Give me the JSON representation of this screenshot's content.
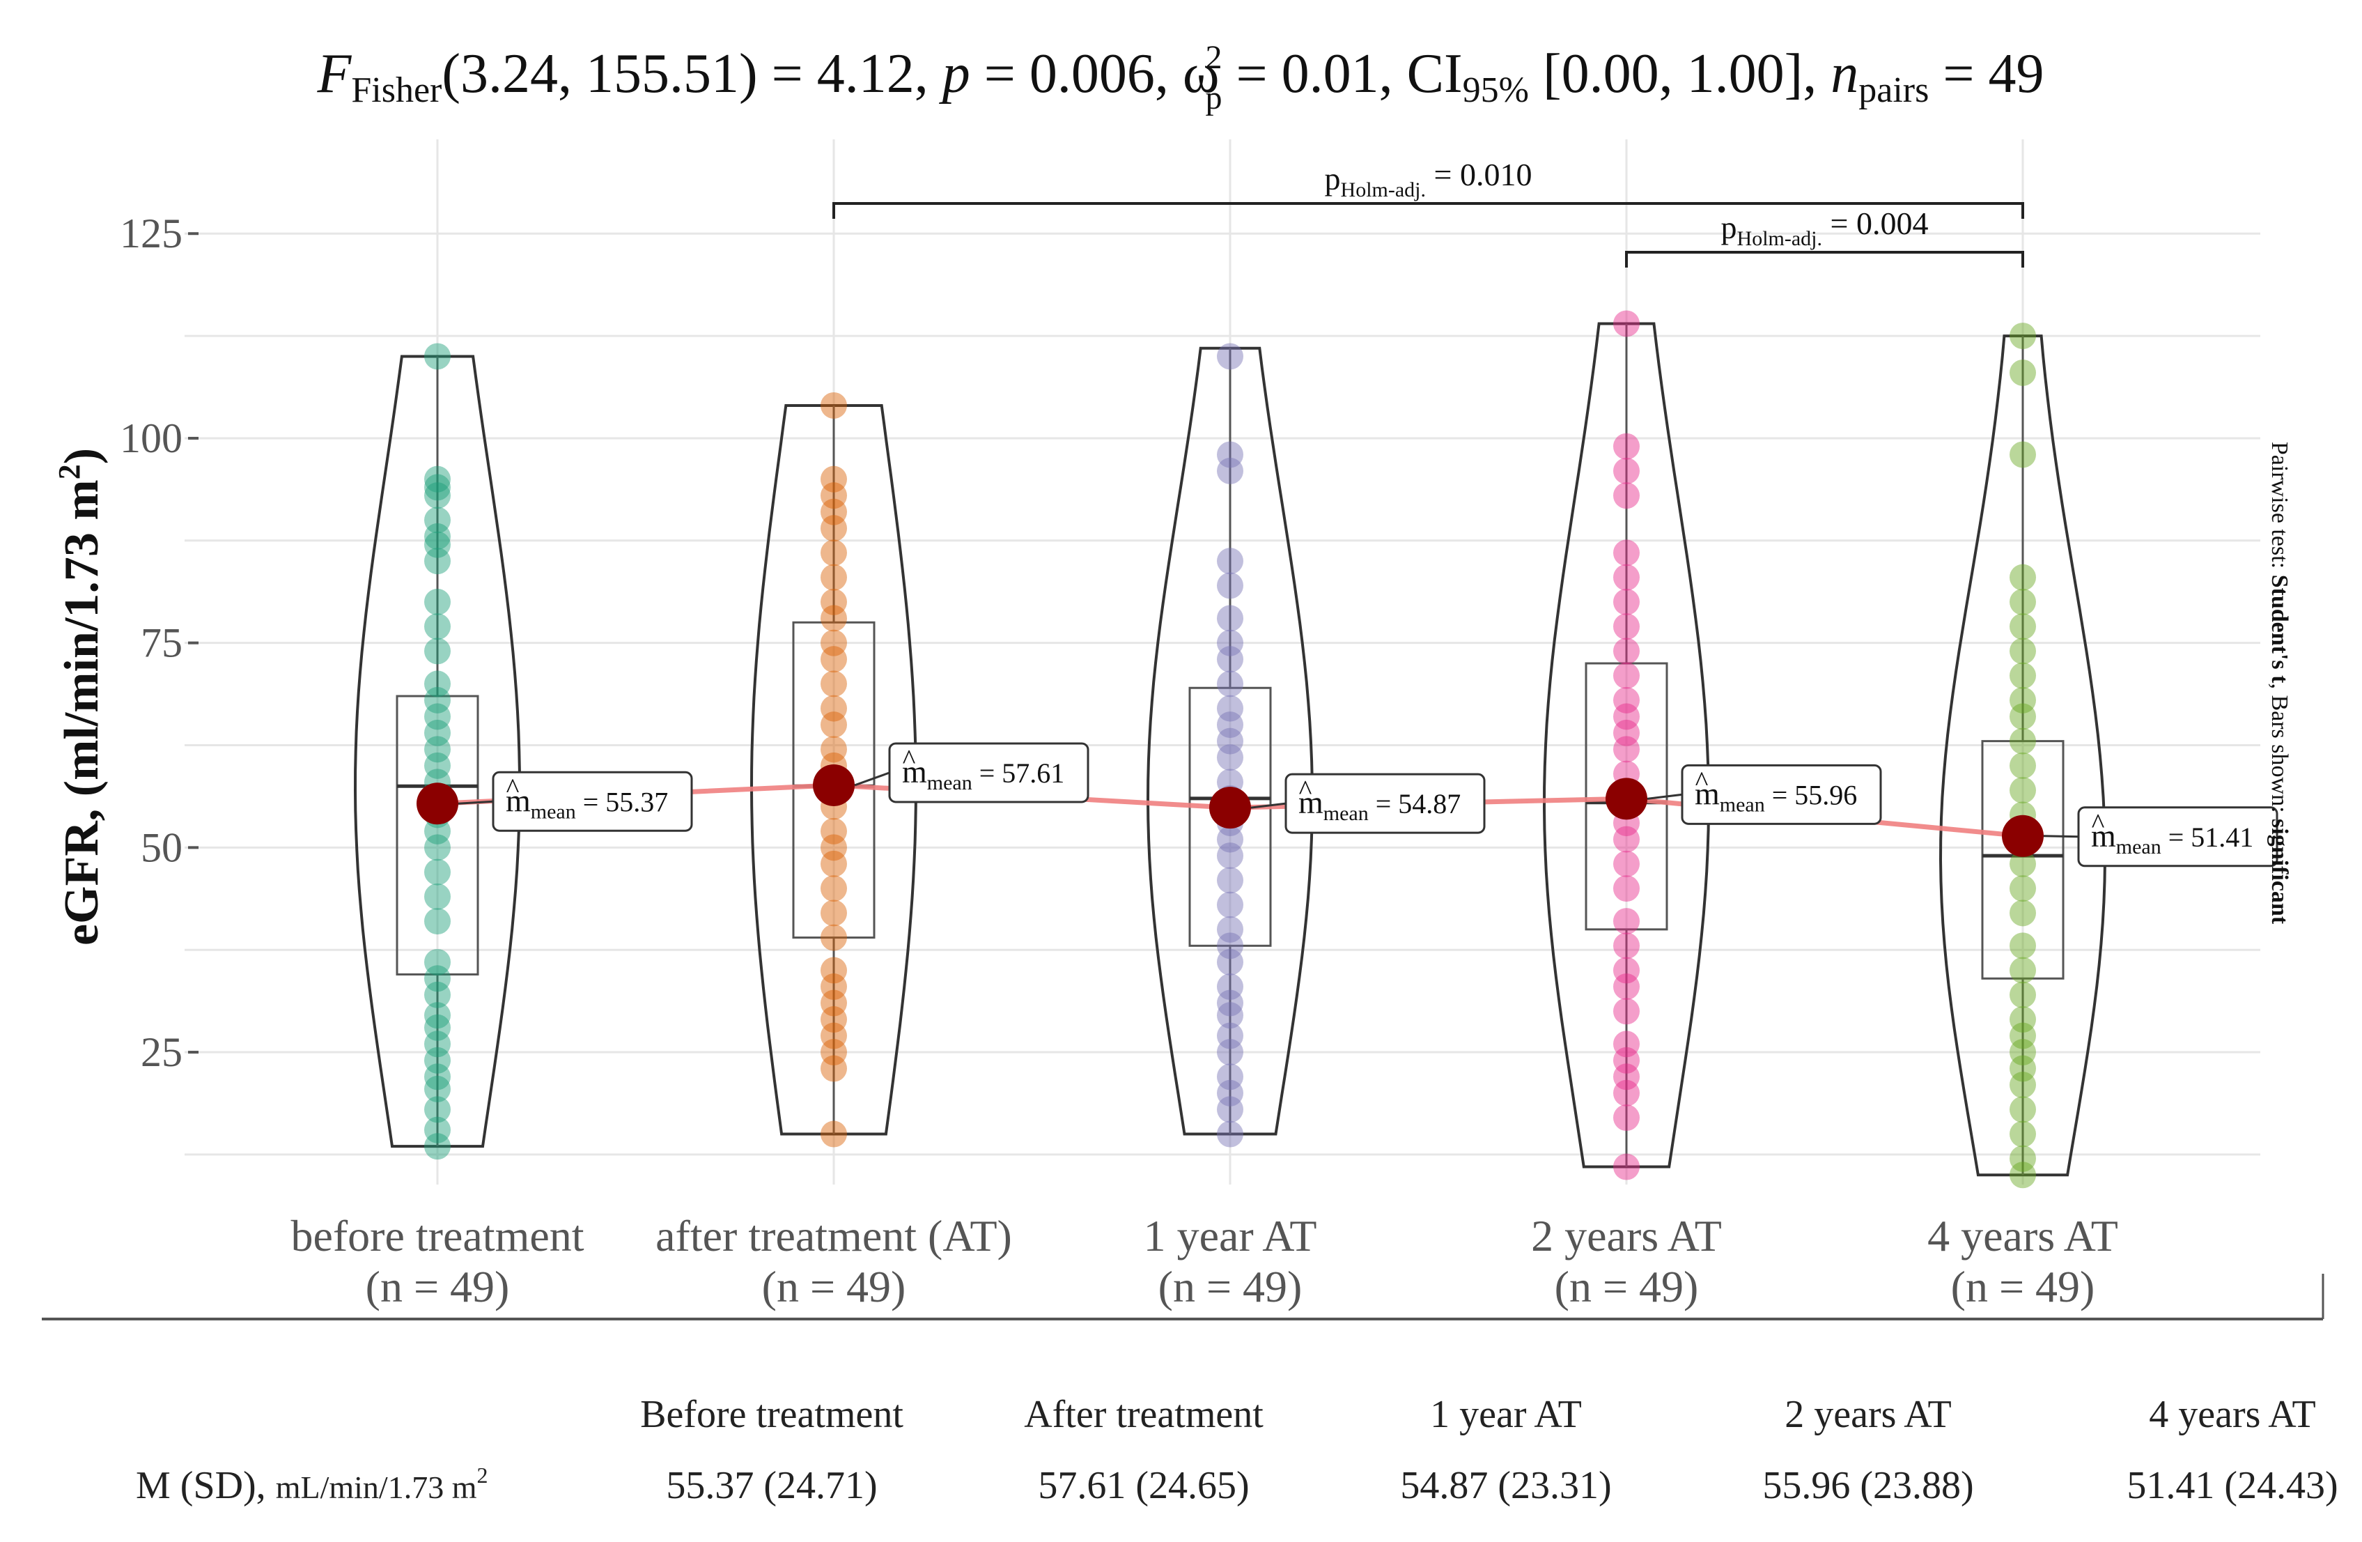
{
  "title": {
    "f_symbol": "F",
    "f_sub": "Fisher",
    "stat_text": "(3.24, 155.51) = 4.12, ",
    "p_symbol": "p",
    "p_text": " = 0.006, ",
    "omega": "ω",
    "omega_sup": "2",
    "omega_sub": "p",
    "omega_text": " = 0.01, CI",
    "ci_sub": "95%",
    "ci_text": " [0.00, 1.00], ",
    "n_symbol": "n",
    "n_sub": "pairs",
    "n_text": " = 49"
  },
  "side_note": {
    "prefix": "Pairwise test: ",
    "test": "Student's t",
    "mid": ", Bars shown: ",
    "shown": "significant"
  },
  "table": {
    "row_label_prefix": "M (SD), ",
    "row_label_unit": "mL/min/1.73 m",
    "row_label_sup": "2",
    "headers": [
      "Before treatment",
      "After treatment",
      "1 year AT",
      "2 years AT",
      "4 years AT"
    ],
    "values": [
      "55.37 (24.71)",
      "57.61 (24.65)",
      "54.87 (23.31)",
      "55.96 (23.88)",
      "51.41 (24.43)"
    ]
  },
  "chart_data": {
    "type": "violin-box-scatter",
    "ylabel": "eGFR, (ml/min/1.73 m²)",
    "ylabel_parts": {
      "main": "eGFR, (ml/min/1.73 m",
      "sup": "2",
      "end": ")"
    },
    "ylim": [
      5,
      128
    ],
    "yticks": [
      25,
      50,
      75,
      100,
      125
    ],
    "ytick_labels": [
      "25",
      "50",
      "75",
      "100",
      "125"
    ],
    "grid": true,
    "categories": [
      "before treatment",
      "after treatment (AT)",
      "1 year AT",
      "2 years AT",
      "4 years AT"
    ],
    "counts": [
      "(n = 49)",
      "(n = 49)",
      "(n = 49)",
      "(n = 49)",
      "(n = 49)"
    ],
    "colors": [
      "#1b9e77",
      "#d95f02",
      "#7570b3",
      "#e7298a",
      "#66a61e"
    ],
    "mean_color": "#8b0000",
    "mean_line_color": "#f08080",
    "means": [
      55.37,
      57.61,
      54.87,
      55.96,
      51.41
    ],
    "mean_label_prefix": "m",
    "mean_label_sub": "mean",
    "mean_labels": [
      "= 55.37",
      "= 57.61",
      "= 54.87",
      "= 55.96",
      "= 51.41"
    ],
    "boxes": [
      {
        "q1": 34.5,
        "median": 57.5,
        "q3": 68.5
      },
      {
        "q1": 39.0,
        "median": 57.5,
        "q3": 77.5
      },
      {
        "q1": 38.0,
        "median": 56.0,
        "q3": 69.5
      },
      {
        "q1": 40.0,
        "median": 55.5,
        "q3": 72.5
      },
      {
        "q1": 34.0,
        "median": 49.0,
        "q3": 63.0
      }
    ],
    "ranges": [
      [
        13.5,
        110
      ],
      [
        15,
        104
      ],
      [
        15,
        111
      ],
      [
        11,
        114
      ],
      [
        10,
        112.5
      ]
    ],
    "points": [
      [
        13.5,
        15.5,
        18,
        20.5,
        22,
        24,
        26,
        28,
        29.5,
        32,
        34,
        36,
        41,
        44,
        47,
        50,
        52,
        54,
        56,
        58,
        60,
        62,
        64,
        66,
        68,
        70,
        74,
        77,
        80,
        85,
        87,
        88,
        90,
        93,
        94,
        95,
        110
      ],
      [
        15,
        23,
        25,
        27,
        29,
        31,
        33,
        35,
        39,
        42,
        45,
        48,
        50,
        52,
        55,
        57,
        60,
        62,
        65,
        67,
        70,
        73,
        75,
        78,
        80,
        83,
        86,
        89,
        91,
        93,
        95,
        104
      ],
      [
        15,
        18,
        20,
        22,
        25,
        27,
        29.5,
        31,
        33,
        36,
        38,
        40,
        43,
        46,
        49,
        51,
        53,
        56,
        58,
        61,
        63,
        65,
        67,
        70,
        73,
        75,
        78,
        82,
        85,
        96,
        98,
        110
      ],
      [
        11,
        17,
        20,
        22,
        24,
        26,
        30,
        33,
        35,
        38,
        41,
        45,
        48,
        51,
        53,
        56,
        59,
        62,
        64,
        66,
        68,
        71,
        74,
        77,
        80,
        83,
        86,
        93,
        96,
        99,
        114
      ],
      [
        10,
        12,
        15,
        18,
        21,
        23,
        25,
        27,
        29,
        32,
        35,
        38,
        42,
        45,
        48,
        51,
        54,
        57,
        60,
        63,
        66,
        68,
        71,
        74,
        77,
        80,
        83,
        98,
        108,
        112.5
      ]
    ],
    "comparisons": [
      {
        "from": 1,
        "to": 4,
        "p_prefix": "p",
        "p_sub": "Holm-adj.",
        "p_text": " = 0.010"
      },
      {
        "from": 3,
        "to": 4,
        "p_prefix": "p",
        "p_sub": "Holm-adj.",
        "p_text": " = 0.004"
      }
    ]
  }
}
